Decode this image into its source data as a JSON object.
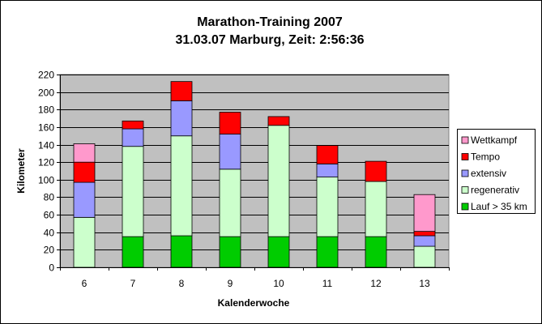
{
  "chart_data": {
    "type": "bar",
    "stacked": true,
    "title": "Marathon-Training 2007",
    "subtitle": "31.03.07 Marburg, Zeit: 2:56:36",
    "xlabel": "Kalenderwoche",
    "ylabel": "Kilometer",
    "categories": [
      "6",
      "7",
      "8",
      "9",
      "10",
      "11",
      "12",
      "13"
    ],
    "ylim": [
      0,
      220
    ],
    "yticks": [
      0,
      20,
      40,
      60,
      80,
      100,
      120,
      140,
      160,
      180,
      200,
      220
    ],
    "grid": true,
    "legend_position": "right",
    "series": [
      {
        "name": "Lauf > 35 km",
        "color": "#00cc00",
        "values": [
          0,
          35,
          36,
          35,
          35,
          35,
          35,
          0
        ]
      },
      {
        "name": "regenerativ",
        "color": "#ccffcc",
        "values": [
          57,
          103,
          114,
          77,
          127,
          68,
          63,
          24
        ]
      },
      {
        "name": "extensiv",
        "color": "#9999ff",
        "values": [
          40,
          20,
          40,
          40,
          0,
          15,
          0,
          12
        ]
      },
      {
        "name": "Tempo",
        "color": "#ff0000",
        "values": [
          23,
          9,
          22,
          25,
          10,
          21,
          23,
          5
        ]
      },
      {
        "name": "Wettkampf",
        "color": "#ff99cc",
        "values": [
          21,
          0,
          0,
          0,
          0,
          0,
          0,
          42
        ]
      }
    ],
    "plot_background": "#c0c0c0"
  }
}
